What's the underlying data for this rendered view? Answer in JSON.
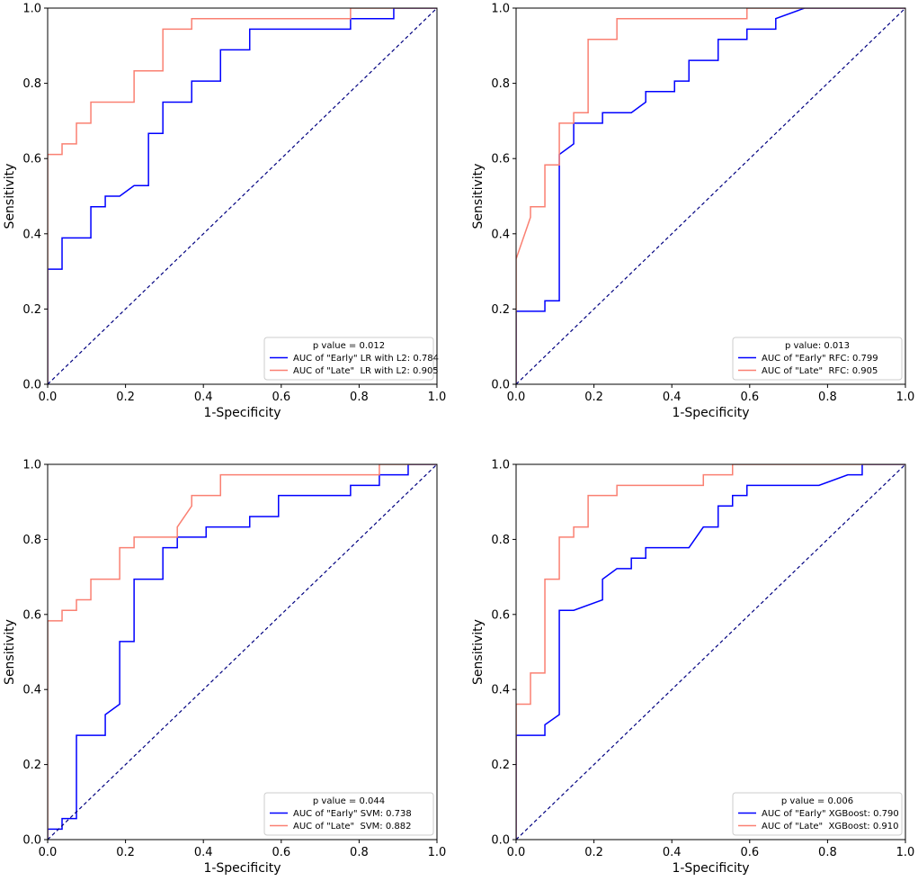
{
  "chart_data": [
    {
      "type": "line",
      "panel": "top-left",
      "xlabel": "1-Specificity",
      "ylabel": "Sensitivity",
      "xlim": [
        0,
        1
      ],
      "ylim": [
        0,
        1
      ],
      "xticks": [
        "0.0",
        "0.2",
        "0.4",
        "0.6",
        "0.8",
        "1.0"
      ],
      "yticks": [
        "0.0",
        "0.2",
        "0.4",
        "0.6",
        "0.8",
        "1.0"
      ],
      "legend_title": "p value = 0.012",
      "legend_position": "lower-right",
      "series": [
        {
          "name": "AUC of \"Early\" LR with L2: 0.784",
          "color": "#0000ff",
          "points": [
            [
              0,
              0
            ],
            [
              0,
              0.306
            ],
            [
              0.037,
              0.306
            ],
            [
              0.037,
              0.389
            ],
            [
              0.111,
              0.389
            ],
            [
              0.111,
              0.472
            ],
            [
              0.148,
              0.472
            ],
            [
              0.148,
              0.5
            ],
            [
              0.185,
              0.5
            ],
            [
              0.222,
              0.528
            ],
            [
              0.259,
              0.528
            ],
            [
              0.259,
              0.667
            ],
            [
              0.296,
              0.667
            ],
            [
              0.296,
              0.75
            ],
            [
              0.37,
              0.75
            ],
            [
              0.37,
              0.806
            ],
            [
              0.444,
              0.806
            ],
            [
              0.444,
              0.889
            ],
            [
              0.519,
              0.889
            ],
            [
              0.519,
              0.944
            ],
            [
              0.778,
              0.944
            ],
            [
              0.778,
              0.972
            ],
            [
              0.889,
              0.972
            ],
            [
              0.889,
              1.0
            ],
            [
              1.0,
              1.0
            ]
          ]
        },
        {
          "name": "AUC of \"Late\"  LR with L2: 0.905",
          "color": "#fa8072",
          "points": [
            [
              0,
              0
            ],
            [
              0,
              0.611
            ],
            [
              0.037,
              0.611
            ],
            [
              0.037,
              0.639
            ],
            [
              0.074,
              0.639
            ],
            [
              0.074,
              0.694
            ],
            [
              0.111,
              0.694
            ],
            [
              0.111,
              0.75
            ],
            [
              0.222,
              0.75
            ],
            [
              0.222,
              0.833
            ],
            [
              0.296,
              0.833
            ],
            [
              0.296,
              0.944
            ],
            [
              0.37,
              0.944
            ],
            [
              0.37,
              0.972
            ],
            [
              0.778,
              0.972
            ],
            [
              0.778,
              1.0
            ],
            [
              1.0,
              1.0
            ]
          ]
        },
        {
          "name": "chance",
          "color": "#000080",
          "dashed": true,
          "points": [
            [
              0,
              0
            ],
            [
              1,
              1
            ]
          ]
        }
      ]
    },
    {
      "type": "line",
      "panel": "top-right",
      "xlabel": "1-Specificity",
      "ylabel": "Sensitivity",
      "xlim": [
        0,
        1
      ],
      "ylim": [
        0,
        1
      ],
      "xticks": [
        "0.0",
        "0.2",
        "0.4",
        "0.6",
        "0.8",
        "1.0"
      ],
      "yticks": [
        "0.0",
        "0.2",
        "0.4",
        "0.6",
        "0.8",
        "1.0"
      ],
      "legend_title": "p value: 0.013",
      "legend_position": "lower-right",
      "series": [
        {
          "name": "AUC of \"Early\" RFC: 0.799",
          "color": "#0000ff",
          "points": [
            [
              0,
              0
            ],
            [
              0,
              0.194
            ],
            [
              0.074,
              0.194
            ],
            [
              0.074,
              0.222
            ],
            [
              0.111,
              0.222
            ],
            [
              0.111,
              0.611
            ],
            [
              0.148,
              0.639
            ],
            [
              0.148,
              0.694
            ],
            [
              0.222,
              0.694
            ],
            [
              0.222,
              0.722
            ],
            [
              0.296,
              0.722
            ],
            [
              0.333,
              0.75
            ],
            [
              0.333,
              0.778
            ],
            [
              0.407,
              0.778
            ],
            [
              0.407,
              0.806
            ],
            [
              0.444,
              0.806
            ],
            [
              0.444,
              0.861
            ],
            [
              0.519,
              0.861
            ],
            [
              0.519,
              0.917
            ],
            [
              0.593,
              0.917
            ],
            [
              0.593,
              0.944
            ],
            [
              0.667,
              0.944
            ],
            [
              0.667,
              0.972
            ],
            [
              0.741,
              1.0
            ],
            [
              1.0,
              1.0
            ]
          ]
        },
        {
          "name": "AUC of \"Late\"  RFC: 0.905",
          "color": "#fa8072",
          "points": [
            [
              0,
              0
            ],
            [
              0,
              0.333
            ],
            [
              0.037,
              0.444
            ],
            [
              0.037,
              0.472
            ],
            [
              0.074,
              0.472
            ],
            [
              0.074,
              0.583
            ],
            [
              0.111,
              0.583
            ],
            [
              0.111,
              0.694
            ],
            [
              0.148,
              0.694
            ],
            [
              0.148,
              0.722
            ],
            [
              0.185,
              0.722
            ],
            [
              0.185,
              0.917
            ],
            [
              0.259,
              0.917
            ],
            [
              0.259,
              0.972
            ],
            [
              0.593,
              0.972
            ],
            [
              0.593,
              1.0
            ],
            [
              1.0,
              1.0
            ]
          ]
        },
        {
          "name": "chance",
          "color": "#000080",
          "dashed": true,
          "points": [
            [
              0,
              0
            ],
            [
              1,
              1
            ]
          ]
        }
      ]
    },
    {
      "type": "line",
      "panel": "bottom-left",
      "xlabel": "1-Specificity",
      "ylabel": "Sensitivity",
      "xlim": [
        0,
        1
      ],
      "ylim": [
        0,
        1
      ],
      "xticks": [
        "0.0",
        "0.2",
        "0.4",
        "0.6",
        "0.8",
        "1.0"
      ],
      "yticks": [
        "0.0",
        "0.2",
        "0.4",
        "0.6",
        "0.8",
        "1.0"
      ],
      "legend_title": "p value = 0.044",
      "legend_position": "lower-right",
      "series": [
        {
          "name": "AUC of \"Early\" SVM: 0.738",
          "color": "#0000ff",
          "points": [
            [
              0,
              0
            ],
            [
              0,
              0.028
            ],
            [
              0.037,
              0.028
            ],
            [
              0.037,
              0.056
            ],
            [
              0.074,
              0.056
            ],
            [
              0.074,
              0.278
            ],
            [
              0.148,
              0.278
            ],
            [
              0.148,
              0.333
            ],
            [
              0.185,
              0.361
            ],
            [
              0.185,
              0.528
            ],
            [
              0.222,
              0.528
            ],
            [
              0.222,
              0.694
            ],
            [
              0.296,
              0.694
            ],
            [
              0.296,
              0.778
            ],
            [
              0.333,
              0.778
            ],
            [
              0.333,
              0.806
            ],
            [
              0.407,
              0.806
            ],
            [
              0.407,
              0.833
            ],
            [
              0.519,
              0.833
            ],
            [
              0.519,
              0.861
            ],
            [
              0.593,
              0.861
            ],
            [
              0.593,
              0.917
            ],
            [
              0.778,
              0.917
            ],
            [
              0.778,
              0.944
            ],
            [
              0.852,
              0.944
            ],
            [
              0.852,
              0.972
            ],
            [
              0.926,
              0.972
            ],
            [
              0.926,
              1.0
            ],
            [
              1.0,
              1.0
            ]
          ]
        },
        {
          "name": "AUC of \"Late\"  SVM: 0.882",
          "color": "#fa8072",
          "points": [
            [
              0,
              0
            ],
            [
              0,
              0.583
            ],
            [
              0.037,
              0.583
            ],
            [
              0.037,
              0.611
            ],
            [
              0.074,
              0.611
            ],
            [
              0.074,
              0.639
            ],
            [
              0.111,
              0.639
            ],
            [
              0.111,
              0.694
            ],
            [
              0.185,
              0.694
            ],
            [
              0.185,
              0.778
            ],
            [
              0.222,
              0.778
            ],
            [
              0.222,
              0.806
            ],
            [
              0.333,
              0.806
            ],
            [
              0.333,
              0.833
            ],
            [
              0.37,
              0.889
            ],
            [
              0.37,
              0.917
            ],
            [
              0.444,
              0.917
            ],
            [
              0.444,
              0.972
            ],
            [
              0.852,
              0.972
            ],
            [
              0.852,
              1.0
            ],
            [
              1.0,
              1.0
            ]
          ]
        },
        {
          "name": "chance",
          "color": "#000080",
          "dashed": true,
          "points": [
            [
              0,
              0
            ],
            [
              1,
              1
            ]
          ]
        }
      ]
    },
    {
      "type": "line",
      "panel": "bottom-right",
      "xlabel": "1-Specificity",
      "ylabel": "Sensitivity",
      "xlim": [
        0,
        1
      ],
      "ylim": [
        0,
        1
      ],
      "xticks": [
        "0.0",
        "0.2",
        "0.4",
        "0.6",
        "0.8",
        "1.0"
      ],
      "yticks": [
        "0.0",
        "0.2",
        "0.4",
        "0.6",
        "0.8",
        "1.0"
      ],
      "legend_title": "p value = 0.006",
      "legend_position": "lower-right",
      "series": [
        {
          "name": "AUC of \"Early\" XGBoost: 0.790",
          "color": "#0000ff",
          "points": [
            [
              0,
              0
            ],
            [
              0,
              0.278
            ],
            [
              0.074,
              0.278
            ],
            [
              0.074,
              0.306
            ],
            [
              0.111,
              0.333
            ],
            [
              0.111,
              0.611
            ],
            [
              0.148,
              0.611
            ],
            [
              0.222,
              0.639
            ],
            [
              0.222,
              0.694
            ],
            [
              0.259,
              0.722
            ],
            [
              0.296,
              0.722
            ],
            [
              0.296,
              0.75
            ],
            [
              0.333,
              0.75
            ],
            [
              0.333,
              0.778
            ],
            [
              0.407,
              0.778
            ],
            [
              0.444,
              0.778
            ],
            [
              0.481,
              0.833
            ],
            [
              0.519,
              0.833
            ],
            [
              0.519,
              0.889
            ],
            [
              0.556,
              0.889
            ],
            [
              0.556,
              0.917
            ],
            [
              0.593,
              0.917
            ],
            [
              0.593,
              0.944
            ],
            [
              0.778,
              0.944
            ],
            [
              0.852,
              0.972
            ],
            [
              0.889,
              0.972
            ],
            [
              0.889,
              1.0
            ],
            [
              1.0,
              1.0
            ]
          ]
        },
        {
          "name": "AUC of \"Late\"  XGBoost: 0.910",
          "color": "#fa8072",
          "points": [
            [
              0,
              0
            ],
            [
              0,
              0.361
            ],
            [
              0.037,
              0.361
            ],
            [
              0.037,
              0.444
            ],
            [
              0.074,
              0.444
            ],
            [
              0.074,
              0.694
            ],
            [
              0.111,
              0.694
            ],
            [
              0.111,
              0.806
            ],
            [
              0.148,
              0.806
            ],
            [
              0.148,
              0.833
            ],
            [
              0.185,
              0.833
            ],
            [
              0.185,
              0.917
            ],
            [
              0.259,
              0.917
            ],
            [
              0.259,
              0.944
            ],
            [
              0.481,
              0.944
            ],
            [
              0.481,
              0.972
            ],
            [
              0.556,
              0.972
            ],
            [
              0.556,
              1.0
            ],
            [
              1.0,
              1.0
            ]
          ]
        },
        {
          "name": "chance",
          "color": "#000080",
          "dashed": true,
          "points": [
            [
              0,
              0
            ],
            [
              1,
              1
            ]
          ]
        }
      ]
    }
  ]
}
